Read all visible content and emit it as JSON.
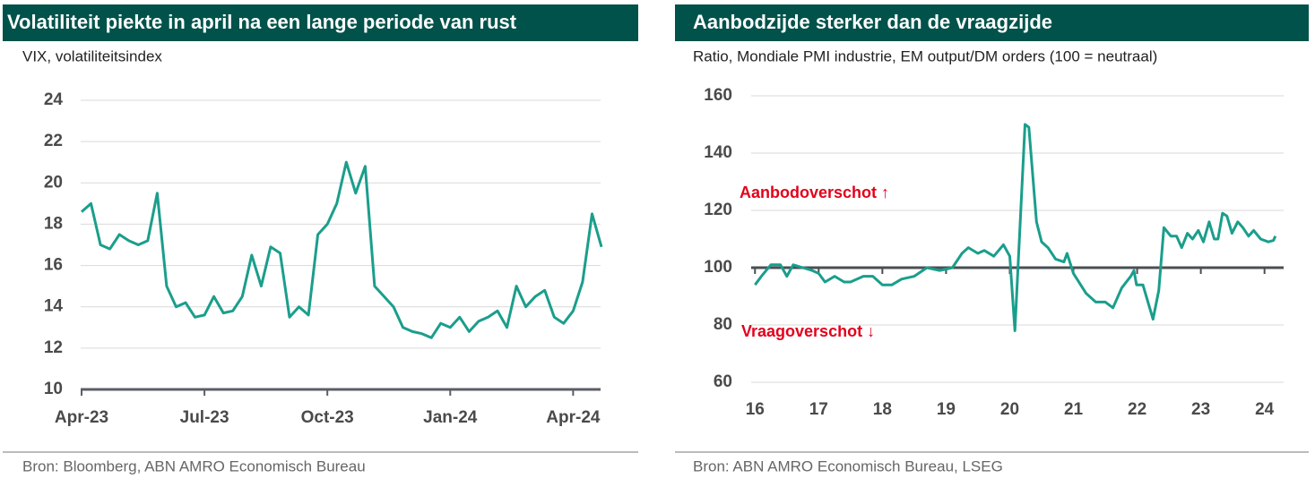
{
  "chart_data": [
    {
      "type": "line",
      "title": "Volatiliteit piekte in april na een lange periode van rust",
      "subtitle": "VIX, volatiliteitsindex",
      "source": "Bron: Bloomberg, ABN AMRO Economisch Bureau",
      "categories": [
        "Apr-23",
        null,
        null,
        null,
        null,
        null,
        null,
        null,
        null,
        null,
        null,
        null,
        null,
        "Jul-23",
        null,
        null,
        null,
        null,
        null,
        null,
        null,
        null,
        null,
        null,
        null,
        null,
        "Oct-23",
        null,
        null,
        null,
        null,
        null,
        null,
        null,
        null,
        null,
        null,
        null,
        null,
        "Jan-24",
        null,
        null,
        null,
        null,
        null,
        null,
        null,
        null,
        null,
        null,
        null,
        null,
        "Apr-24",
        null,
        null,
        null
      ],
      "values": [
        18.6,
        19.0,
        17.0,
        16.8,
        17.5,
        17.2,
        17.0,
        17.2,
        19.5,
        15.0,
        14.0,
        14.2,
        13.5,
        13.6,
        14.5,
        13.7,
        13.8,
        14.5,
        16.5,
        15.0,
        16.9,
        16.6,
        13.5,
        14.0,
        13.6,
        17.5,
        18.0,
        19.0,
        21.0,
        19.5,
        20.8,
        15.0,
        14.5,
        14.0,
        13.0,
        12.8,
        12.7,
        12.5,
        13.2,
        13.0,
        13.5,
        12.8,
        13.3,
        13.5,
        13.8,
        13.0,
        15.0,
        14.0,
        14.5,
        14.8,
        13.5,
        13.2,
        13.8,
        15.2,
        18.5,
        16.9
      ],
      "color": "#1a9e8c",
      "ylim": [
        10,
        24
      ],
      "yticks": [
        10,
        12,
        14,
        16,
        18,
        20,
        22,
        24
      ],
      "grid": true
    },
    {
      "type": "line",
      "title": "Aanbodzijde sterker dan de vraagzijde",
      "subtitle": "Ratio, Mondiale PMI industrie, EM output/DM orders (100 = neutraal)",
      "source": "Bron: ABN AMRO Economisch Bureau, LSEG",
      "x": [
        16.0,
        16.1,
        16.25,
        16.4,
        16.5,
        16.6,
        16.75,
        16.9,
        17.0,
        17.1,
        17.25,
        17.4,
        17.5,
        17.7,
        17.85,
        18.0,
        18.15,
        18.3,
        18.5,
        18.7,
        18.9,
        19.0,
        19.1,
        19.25,
        19.35,
        19.5,
        19.6,
        19.75,
        19.9,
        20.0,
        20.08,
        20.24,
        20.3,
        20.42,
        20.5,
        20.6,
        20.72,
        20.85,
        20.9,
        21.0,
        21.2,
        21.35,
        21.5,
        21.62,
        21.76,
        21.9,
        21.95,
        21.99,
        22.09,
        22.25,
        22.34,
        22.42,
        22.53,
        22.62,
        22.7,
        22.79,
        22.87,
        22.96,
        23.04,
        23.13,
        23.21,
        23.27,
        23.34,
        23.41,
        23.49,
        23.58,
        23.66,
        23.75,
        23.83,
        23.94,
        24.06,
        24.14,
        24.17
      ],
      "values": [
        94,
        97,
        101,
        101,
        97,
        101,
        100,
        99,
        98,
        95,
        97,
        95,
        95,
        97,
        97,
        94,
        94,
        96,
        97,
        100,
        99,
        99.5,
        100,
        105,
        107,
        105,
        106,
        104,
        108,
        104,
        78,
        150,
        149,
        116,
        109,
        107,
        103,
        102,
        105,
        98,
        91,
        88,
        88,
        86,
        93,
        97,
        99,
        94,
        94,
        82,
        92,
        114,
        111,
        111,
        107,
        112,
        110,
        113,
        109,
        116,
        110,
        110,
        119,
        118,
        112,
        116,
        114,
        111,
        113,
        110,
        109,
        109.5,
        111
      ],
      "color": "#1a9e8c",
      "xlim": [
        15.94,
        24.3
      ],
      "xticks": [
        16,
        17,
        18,
        19,
        20,
        21,
        22,
        23,
        24
      ],
      "ylim": [
        60,
        160
      ],
      "yticks": [
        60,
        80,
        100,
        120,
        140,
        160
      ],
      "grid": true,
      "reference_line": 100,
      "annotations": [
        "Aanbodoverschot ↑",
        "Vraagoverschot ↓"
      ]
    }
  ]
}
